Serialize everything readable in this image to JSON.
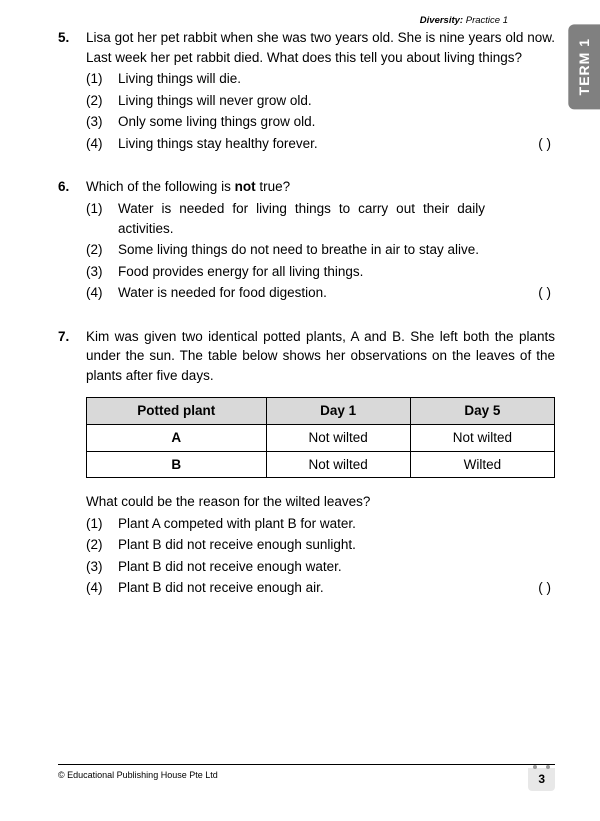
{
  "header": {
    "category_bold": "Diversity:",
    "category_normal": " Practice 1"
  },
  "term_tab": "TERM 1",
  "questions": [
    {
      "num": "5.",
      "stem": "Lisa got her pet rabbit when she was two years old. She is nine years old now. Last week her pet rabbit died. What does this tell you about living things?",
      "options": [
        {
          "n": "(1)",
          "t": "Living things will die."
        },
        {
          "n": "(2)",
          "t": "Living things will never grow old."
        },
        {
          "n": "(3)",
          "t": "Only some living things grow old."
        },
        {
          "n": "(4)",
          "t": "Living things stay healthy forever."
        }
      ],
      "blank": "(          )"
    },
    {
      "num": "6.",
      "stem_pre": "Which of the following is ",
      "stem_bold": "not",
      "stem_post": " true?",
      "options": [
        {
          "n": "(1)",
          "t": "Water is needed for living things to carry out their daily activities."
        },
        {
          "n": "(2)",
          "t": "Some living things do not need to breathe in air to stay alive."
        },
        {
          "n": "(3)",
          "t": "Food provides energy for all living things."
        },
        {
          "n": "(4)",
          "t": "Water is needed for food digestion."
        }
      ],
      "blank": "(          )"
    },
    {
      "num": "7.",
      "stem": "Kim was given two identical potted plants, A and B. She left both the plants under the sun. The table below shows her observations on the leaves of the plants after five days.",
      "table": {
        "headers": [
          "Potted plant",
          "Day 1",
          "Day 5"
        ],
        "rows": [
          [
            "A",
            "Not wilted",
            "Not wilted"
          ],
          [
            "B",
            "Not wilted",
            "Wilted"
          ]
        ]
      },
      "sub": "What could be the reason for the wilted leaves?",
      "options": [
        {
          "n": "(1)",
          "t": "Plant A competed with plant B for water."
        },
        {
          "n": "(2)",
          "t": "Plant B did not receive enough sunlight."
        },
        {
          "n": "(3)",
          "t": "Plant B did not receive enough water."
        },
        {
          "n": "(4)",
          "t": "Plant B did not receive enough air."
        }
      ],
      "blank": "(          )"
    }
  ],
  "footer": {
    "copyright": "© Educational Publishing House Pte Ltd",
    "page": "3"
  }
}
